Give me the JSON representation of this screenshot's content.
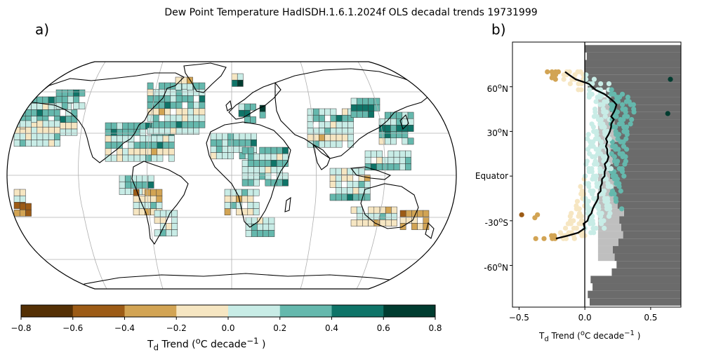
{
  "title": "Dew Point Temperature HadISDH.1.6.1.2024f OLS decadal trends 19731999",
  "panel_a_label": "a)",
  "panel_b_label": "b)",
  "colorbar": {
    "label_html": "T<sub>d</sub> Trend (<sup>o</sup>C decade<sup>−1</sup> )",
    "ticks": [
      "−0.8",
      "−0.6",
      "−0.4",
      "−0.2",
      "0.0",
      "0.2",
      "0.4",
      "0.6",
      "0.8"
    ],
    "colors": [
      "#543005",
      "#9c5b16",
      "#d2a454",
      "#f6e6c2",
      "#c8ece6",
      "#65b8ad",
      "#0f7468",
      "#003c30"
    ]
  },
  "chart_data": [
    {
      "type": "map",
      "projection": "Robinson",
      "variable": "Dew point temperature trend",
      "units": "°C decade⁻¹",
      "colorbar_range": [
        -0.8,
        0.8
      ],
      "gridlines": true
    },
    {
      "type": "scatter",
      "xlabel_html": "T<sub>d</sub> Trend (<sup>o</sup>C decade<sup>−1</sup> )",
      "xlim": [
        -0.55,
        0.73
      ],
      "ylim": [
        -88,
        90
      ],
      "x_ticks": [
        -0.5,
        0.0,
        0.5
      ],
      "x_tick_labels": [
        "−0.5",
        "0.0",
        "0.5"
      ],
      "y_ticks": [
        60,
        30,
        0,
        -30,
        -60
      ],
      "y_tick_labels_html": [
        "60<sup>o</sup>N",
        "30<sup>o</sup>N",
        "Equator",
        "-30<sup>o</sup>S",
        "-60<sup>o</sup>N"
      ],
      "zonal_mean": {
        "lat": [
          -42,
          -40,
          -38,
          -35,
          -32,
          -30,
          -27,
          -25,
          -22,
          -20,
          -17,
          -15,
          -12,
          -10,
          -7,
          -5,
          -2,
          0,
          3,
          5,
          8,
          10,
          13,
          15,
          18,
          20,
          23,
          25,
          28,
          30,
          33,
          35,
          38,
          40,
          43,
          45,
          48,
          50,
          53,
          55,
          58,
          62,
          65,
          68,
          70
        ],
        "trend": [
          -0.22,
          -0.13,
          -0.05,
          0.0,
          -0.01,
          0.02,
          0.03,
          0.05,
          0.06,
          0.07,
          0.09,
          0.1,
          0.1,
          0.12,
          0.12,
          0.13,
          0.13,
          0.15,
          0.15,
          0.16,
          0.15,
          0.17,
          0.18,
          0.17,
          0.17,
          0.16,
          0.17,
          0.16,
          0.18,
          0.19,
          0.2,
          0.2,
          0.22,
          0.2,
          0.22,
          0.23,
          0.24,
          0.22,
          0.18,
          0.15,
          0.08,
          0.03,
          -0.07,
          -0.12,
          -0.15
        ]
      },
      "coverage_background": "gray shading proportional to fraction of land/ocean without data at each latitude"
    }
  ]
}
